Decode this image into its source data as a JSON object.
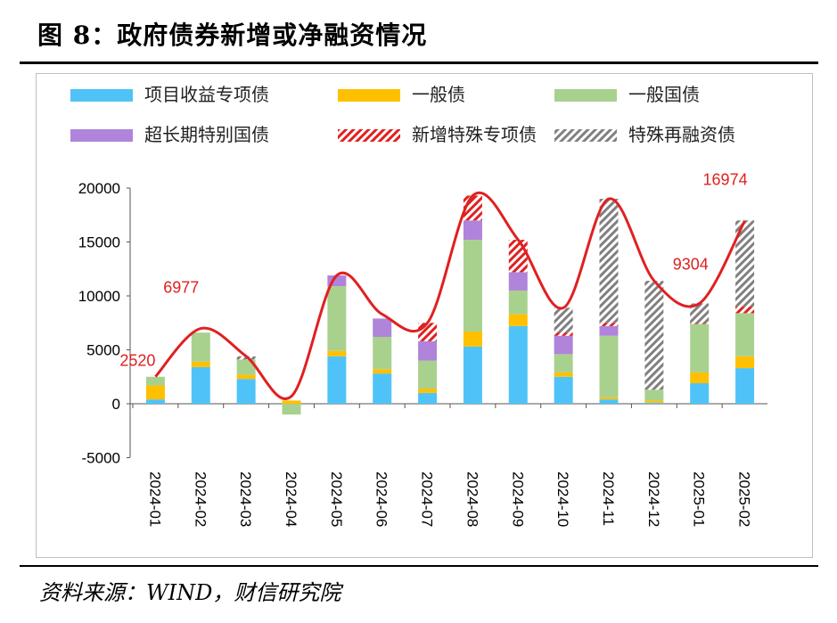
{
  "figure": {
    "title": "图 8：政府债券新增或净融资情况",
    "source": "资料来源：WIND，财信研究院"
  },
  "chart_data": {
    "type": "bar",
    "stacked": true,
    "title": "",
    "xlabel": "",
    "ylabel": "",
    "ylim": [
      -5000,
      20000
    ],
    "yticks": [
      20000,
      15000,
      10000,
      5000,
      0,
      -5000
    ],
    "grid": false,
    "legend_position": "top",
    "categories": [
      "2024-01",
      "2024-02",
      "2024-03",
      "2024-04",
      "2024-05",
      "2024-06",
      "2024-07",
      "2024-08",
      "2024-09",
      "2024-10",
      "2024-11",
      "2024-12",
      "2025-01",
      "2025-02"
    ],
    "series": [
      {
        "name": "项目收益专项债",
        "color": "#4FC3F7",
        "pattern": "solid",
        "values": [
          400,
          3400,
          2300,
          0,
          4400,
          2800,
          1000,
          5300,
          7200,
          2500,
          400,
          100,
          1900,
          3300
        ]
      },
      {
        "name": "一般债",
        "color": "#FFC000",
        "pattern": "solid",
        "values": [
          1300,
          500,
          400,
          300,
          500,
          400,
          400,
          1400,
          1100,
          400,
          200,
          200,
          1000,
          1100
        ]
      },
      {
        "name": "一般国债",
        "color": "#A9D18E",
        "pattern": "solid",
        "values": [
          800,
          2700,
          1400,
          -1000,
          6000,
          3000,
          2600,
          8500,
          2200,
          1700,
          5700,
          1000,
          4500,
          4000
        ]
      },
      {
        "name": "超长期特别国债",
        "color": "#B084DA",
        "pattern": "solid",
        "values": [
          0,
          0,
          0,
          0,
          1000,
          1700,
          1800,
          1800,
          1700,
          1700,
          900,
          0,
          0,
          0
        ]
      },
      {
        "name": "新增特殊专项债",
        "color": "#E02020",
        "pattern": "hatch",
        "values": [
          0,
          0,
          0,
          0,
          0,
          0,
          1700,
          2300,
          3000,
          300,
          300,
          0,
          100,
          600
        ]
      },
      {
        "name": "特殊再融资债",
        "color": "#808080",
        "pattern": "hatch",
        "values": [
          0,
          0,
          300,
          0,
          0,
          0,
          0,
          0,
          0,
          2300,
          11500,
          10100,
          1800,
          8000
        ]
      }
    ],
    "total_line": {
      "color": "#E02020",
      "values": [
        2520,
        6977,
        4400,
        700,
        11900,
        8300,
        7500,
        19300,
        15200,
        8900,
        19000,
        11400,
        9304,
        16974
      ]
    },
    "data_labels": [
      {
        "category": "2024-01",
        "text": "2520"
      },
      {
        "category": "2024-02",
        "text": "6977"
      },
      {
        "category": "2025-01",
        "text": "9304"
      },
      {
        "category": "2025-02",
        "text": "16974"
      }
    ]
  }
}
